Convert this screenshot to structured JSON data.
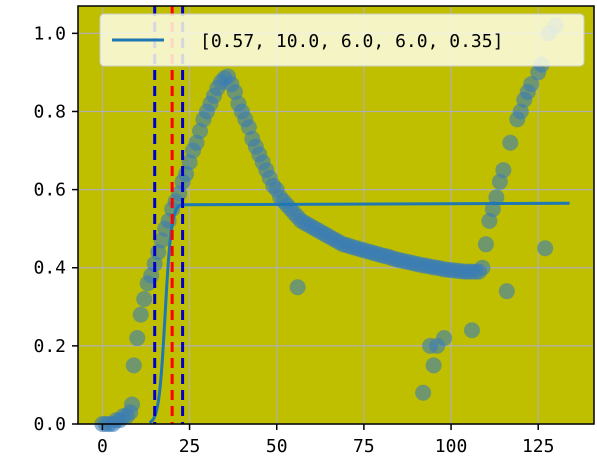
{
  "chart_data": {
    "type": "scatter",
    "title": "",
    "xlabel": "",
    "ylabel": "",
    "xlim": [
      -7,
      141
    ],
    "ylim": [
      0,
      1.07
    ],
    "x_ticks": [
      0,
      25,
      50,
      75,
      100,
      125
    ],
    "y_ticks": [
      0.0,
      0.2,
      0.4,
      0.6,
      0.8,
      1.0
    ],
    "x_tick_labels": [
      "0",
      "25",
      "50",
      "75",
      "100",
      "125"
    ],
    "y_tick_labels": [
      "0.0",
      "0.2",
      "0.4",
      "0.6",
      "0.8",
      "1.0"
    ],
    "grid": true,
    "legend_position": "top-right",
    "colors": {
      "background": "#bfbf00",
      "points": "#3a7db5",
      "line": "#1f77b4",
      "red_dash": "#ff0000",
      "blue_dash": "#0000cd",
      "grid": "#b0b0b0"
    },
    "fit_line": {
      "label": "[0.57, 10.0, 6.0, 6.0, 0.35]",
      "plateau": 0.565,
      "x_start": 13.5,
      "x_end": 134
    },
    "vertical_lines": [
      {
        "x": 15,
        "style": "blue-dashed"
      },
      {
        "x": 20,
        "style": "red-dashed"
      },
      {
        "x": 23,
        "style": "blue-dashed"
      }
    ],
    "points": [
      [
        0,
        0.0
      ],
      [
        1,
        0.0
      ],
      [
        2,
        0.0
      ],
      [
        3,
        0.0
      ],
      [
        4,
        0.01
      ],
      [
        5,
        0.01
      ],
      [
        6,
        0.02
      ],
      [
        7,
        0.02
      ],
      [
        8,
        0.03
      ],
      [
        8.5,
        0.05
      ],
      [
        9,
        0.15
      ],
      [
        10,
        0.22
      ],
      [
        11,
        0.28
      ],
      [
        12,
        0.32
      ],
      [
        13,
        0.36
      ],
      [
        14,
        0.38
      ],
      [
        15,
        0.41
      ],
      [
        16,
        0.44
      ],
      [
        17,
        0.47
      ],
      [
        18,
        0.5
      ],
      [
        19,
        0.52
      ],
      [
        20,
        0.55
      ],
      [
        21,
        0.57
      ],
      [
        22,
        0.59
      ],
      [
        23,
        0.62
      ],
      [
        24,
        0.64
      ],
      [
        25,
        0.67
      ],
      [
        26,
        0.7
      ],
      [
        27,
        0.72
      ],
      [
        28,
        0.75
      ],
      [
        29,
        0.78
      ],
      [
        30,
        0.8
      ],
      [
        31,
        0.82
      ],
      [
        32,
        0.84
      ],
      [
        33,
        0.86
      ],
      [
        34,
        0.875
      ],
      [
        35,
        0.885
      ],
      [
        36,
        0.89
      ],
      [
        37,
        0.87
      ],
      [
        38,
        0.85
      ],
      [
        39,
        0.82
      ],
      [
        40,
        0.8
      ],
      [
        41,
        0.78
      ],
      [
        42,
        0.76
      ],
      [
        43,
        0.73
      ],
      [
        44,
        0.71
      ],
      [
        45,
        0.69
      ],
      [
        46,
        0.67
      ],
      [
        47,
        0.65
      ],
      [
        48,
        0.63
      ],
      [
        49,
        0.61
      ],
      [
        50,
        0.6
      ],
      [
        51,
        0.58
      ],
      [
        52,
        0.57
      ],
      [
        53,
        0.56
      ],
      [
        54,
        0.55
      ],
      [
        55,
        0.54
      ],
      [
        56,
        0.53
      ],
      [
        57,
        0.52
      ],
      [
        58,
        0.515
      ],
      [
        59,
        0.51
      ],
      [
        60,
        0.505
      ],
      [
        61,
        0.5
      ],
      [
        62,
        0.495
      ],
      [
        63,
        0.49
      ],
      [
        64,
        0.485
      ],
      [
        65,
        0.48
      ],
      [
        66,
        0.475
      ],
      [
        67,
        0.47
      ],
      [
        68,
        0.465
      ],
      [
        69,
        0.46
      ],
      [
        70,
        0.458
      ],
      [
        71,
        0.455
      ],
      [
        72,
        0.452
      ],
      [
        73,
        0.45
      ],
      [
        74,
        0.447
      ],
      [
        75,
        0.445
      ],
      [
        76,
        0.442
      ],
      [
        77,
        0.44
      ],
      [
        78,
        0.437
      ],
      [
        79,
        0.435
      ],
      [
        80,
        0.432
      ],
      [
        81,
        0.43
      ],
      [
        82,
        0.428
      ],
      [
        83,
        0.425
      ],
      [
        84,
        0.422
      ],
      [
        85,
        0.42
      ],
      [
        86,
        0.418
      ],
      [
        87,
        0.416
      ],
      [
        88,
        0.414
      ],
      [
        89,
        0.412
      ],
      [
        90,
        0.41
      ],
      [
        91,
        0.408
      ],
      [
        92,
        0.406
      ],
      [
        93,
        0.405
      ],
      [
        94,
        0.403
      ],
      [
        95,
        0.401
      ],
      [
        96,
        0.4
      ],
      [
        97,
        0.398
      ],
      [
        98,
        0.396
      ],
      [
        99,
        0.395
      ],
      [
        100,
        0.394
      ],
      [
        101,
        0.393
      ],
      [
        102,
        0.392
      ],
      [
        103,
        0.391
      ],
      [
        104,
        0.39
      ],
      [
        105,
        0.39
      ],
      [
        106,
        0.39
      ],
      [
        107,
        0.39
      ],
      [
        108,
        0.39
      ],
      [
        109,
        0.4
      ],
      [
        110,
        0.46
      ],
      [
        111,
        0.52
      ],
      [
        112,
        0.55
      ],
      [
        113,
        0.58
      ],
      [
        114,
        0.62
      ],
      [
        115,
        0.65
      ],
      [
        117,
        0.72
      ],
      [
        119,
        0.78
      ],
      [
        120,
        0.8
      ],
      [
        121,
        0.83
      ],
      [
        122,
        0.85
      ],
      [
        123,
        0.87
      ],
      [
        125,
        0.9
      ],
      [
        126,
        0.92
      ],
      [
        128,
        1.0
      ],
      [
        130,
        1.02
      ],
      [
        56,
        0.35
      ],
      [
        92,
        0.08
      ],
      [
        94,
        0.2
      ],
      [
        95,
        0.15
      ],
      [
        96,
        0.2
      ],
      [
        98,
        0.22
      ],
      [
        106,
        0.24
      ],
      [
        116,
        0.34
      ],
      [
        127,
        0.45
      ]
    ]
  }
}
